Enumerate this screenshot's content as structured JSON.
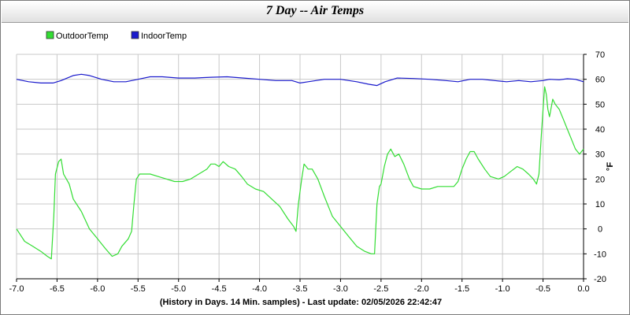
{
  "window": {
    "title": "7 Day -- Air Temps"
  },
  "chart_data": {
    "type": "line",
    "title": "7 Day -- Air Temps",
    "xlabel": "(History in Days. 14 Min. samples) - Last update: 02/05/2026 22:42:47",
    "ylabel": "°F",
    "xlim": [
      -7.0,
      0.0
    ],
    "ylim": [
      -20,
      70
    ],
    "x_ticks": [
      -7.0,
      -6.5,
      -6.0,
      -5.5,
      -5.0,
      -4.5,
      -4.0,
      -3.5,
      -3.0,
      -2.5,
      -2.0,
      -1.5,
      -1.0,
      -0.5,
      0.0
    ],
    "x_tick_labels": [
      "-7.0",
      "-6.5",
      "-6.0",
      "-5.5",
      "-5.0",
      "-4.5",
      "-4.0",
      "-3.5",
      "-3.0",
      "-2.5",
      "-2.0",
      "-1.5",
      "-1.0",
      "-0.5",
      "0.0"
    ],
    "y_ticks": [
      -20,
      -10,
      0,
      10,
      20,
      30,
      40,
      50,
      60,
      70
    ],
    "y_tick_labels": [
      "-20",
      "-10",
      "0",
      "10",
      "20",
      "30",
      "40",
      "50",
      "60",
      "70"
    ],
    "grid": true,
    "legend_position": "top-left",
    "series": [
      {
        "name": "OutdoorTemp",
        "color": "#33dd33",
        "points": [
          [
            -7.0,
            0
          ],
          [
            -6.9,
            -5
          ],
          [
            -6.8,
            -7
          ],
          [
            -6.7,
            -9
          ],
          [
            -6.62,
            -11
          ],
          [
            -6.57,
            -12
          ],
          [
            -6.54,
            5
          ],
          [
            -6.52,
            22
          ],
          [
            -6.48,
            27
          ],
          [
            -6.45,
            28
          ],
          [
            -6.42,
            22
          ],
          [
            -6.35,
            18
          ],
          [
            -6.3,
            12
          ],
          [
            -6.2,
            7
          ],
          [
            -6.1,
            0
          ],
          [
            -6.0,
            -4
          ],
          [
            -5.9,
            -8
          ],
          [
            -5.82,
            -11
          ],
          [
            -5.75,
            -10
          ],
          [
            -5.7,
            -7
          ],
          [
            -5.62,
            -4
          ],
          [
            -5.58,
            -1
          ],
          [
            -5.55,
            10
          ],
          [
            -5.52,
            20
          ],
          [
            -5.48,
            22
          ],
          [
            -5.42,
            22
          ],
          [
            -5.35,
            22
          ],
          [
            -5.25,
            21
          ],
          [
            -5.15,
            20
          ],
          [
            -5.05,
            19
          ],
          [
            -4.95,
            19
          ],
          [
            -4.85,
            20
          ],
          [
            -4.75,
            22
          ],
          [
            -4.65,
            24
          ],
          [
            -4.6,
            26
          ],
          [
            -4.55,
            26
          ],
          [
            -4.5,
            25
          ],
          [
            -4.45,
            27
          ],
          [
            -4.38,
            25
          ],
          [
            -4.3,
            24
          ],
          [
            -4.22,
            21
          ],
          [
            -4.15,
            18
          ],
          [
            -4.05,
            16
          ],
          [
            -3.95,
            15
          ],
          [
            -3.85,
            12
          ],
          [
            -3.75,
            9
          ],
          [
            -3.65,
            4
          ],
          [
            -3.58,
            1
          ],
          [
            -3.55,
            -1
          ],
          [
            -3.52,
            10
          ],
          [
            -3.48,
            20
          ],
          [
            -3.45,
            26
          ],
          [
            -3.4,
            24
          ],
          [
            -3.35,
            24
          ],
          [
            -3.28,
            20
          ],
          [
            -3.2,
            13
          ],
          [
            -3.1,
            5
          ],
          [
            -3.0,
            1
          ],
          [
            -2.9,
            -3
          ],
          [
            -2.8,
            -7
          ],
          [
            -2.7,
            -9
          ],
          [
            -2.62,
            -10
          ],
          [
            -2.58,
            -10
          ],
          [
            -2.55,
            10
          ],
          [
            -2.52,
            17
          ],
          [
            -2.5,
            18
          ],
          [
            -2.46,
            25
          ],
          [
            -2.42,
            30
          ],
          [
            -2.38,
            32
          ],
          [
            -2.33,
            29
          ],
          [
            -2.28,
            30
          ],
          [
            -2.22,
            26
          ],
          [
            -2.15,
            20
          ],
          [
            -2.1,
            17
          ],
          [
            -2.0,
            16
          ],
          [
            -1.9,
            16
          ],
          [
            -1.8,
            17
          ],
          [
            -1.7,
            17
          ],
          [
            -1.6,
            17
          ],
          [
            -1.55,
            19
          ],
          [
            -1.5,
            24
          ],
          [
            -1.45,
            28
          ],
          [
            -1.4,
            31
          ],
          [
            -1.35,
            31
          ],
          [
            -1.3,
            28
          ],
          [
            -1.22,
            24
          ],
          [
            -1.15,
            21
          ],
          [
            -1.05,
            20
          ],
          [
            -0.98,
            21
          ],
          [
            -0.9,
            23
          ],
          [
            -0.82,
            25
          ],
          [
            -0.75,
            24
          ],
          [
            -0.68,
            22
          ],
          [
            -0.62,
            20
          ],
          [
            -0.58,
            18
          ],
          [
            -0.55,
            22
          ],
          [
            -0.52,
            38
          ],
          [
            -0.5,
            48
          ],
          [
            -0.48,
            57
          ],
          [
            -0.46,
            54
          ],
          [
            -0.44,
            48
          ],
          [
            -0.42,
            45
          ],
          [
            -0.38,
            52
          ],
          [
            -0.35,
            50
          ],
          [
            -0.3,
            48
          ],
          [
            -0.25,
            44
          ],
          [
            -0.2,
            40
          ],
          [
            -0.15,
            36
          ],
          [
            -0.1,
            32
          ],
          [
            -0.05,
            30
          ],
          [
            0.0,
            32
          ]
        ]
      },
      {
        "name": "IndoorTemp",
        "color": "#1a1acc",
        "points": [
          [
            -7.0,
            60
          ],
          [
            -6.85,
            59
          ],
          [
            -6.7,
            58.5
          ],
          [
            -6.55,
            58.5
          ],
          [
            -6.45,
            59.5
          ],
          [
            -6.3,
            61.5
          ],
          [
            -6.2,
            62
          ],
          [
            -6.1,
            61.5
          ],
          [
            -5.95,
            60
          ],
          [
            -5.8,
            59
          ],
          [
            -5.65,
            59
          ],
          [
            -5.5,
            60
          ],
          [
            -5.35,
            61
          ],
          [
            -5.2,
            61
          ],
          [
            -5.0,
            60.5
          ],
          [
            -4.8,
            60.5
          ],
          [
            -4.6,
            60.8
          ],
          [
            -4.4,
            61
          ],
          [
            -4.2,
            60.5
          ],
          [
            -4.0,
            60
          ],
          [
            -3.8,
            59.5
          ],
          [
            -3.6,
            59.5
          ],
          [
            -3.5,
            58.5
          ],
          [
            -3.4,
            59
          ],
          [
            -3.2,
            60
          ],
          [
            -3.0,
            60
          ],
          [
            -2.8,
            59
          ],
          [
            -2.65,
            58
          ],
          [
            -2.55,
            57.5
          ],
          [
            -2.45,
            59
          ],
          [
            -2.3,
            60.5
          ],
          [
            -2.1,
            60.3
          ],
          [
            -1.9,
            60
          ],
          [
            -1.7,
            59.5
          ],
          [
            -1.55,
            59
          ],
          [
            -1.4,
            60
          ],
          [
            -1.25,
            60
          ],
          [
            -1.1,
            59.5
          ],
          [
            -0.95,
            59
          ],
          [
            -0.8,
            59.5
          ],
          [
            -0.65,
            59
          ],
          [
            -0.5,
            59.5
          ],
          [
            -0.42,
            60
          ],
          [
            -0.3,
            59.8
          ],
          [
            -0.2,
            60.2
          ],
          [
            -0.1,
            60
          ],
          [
            0.0,
            59
          ]
        ]
      }
    ]
  }
}
